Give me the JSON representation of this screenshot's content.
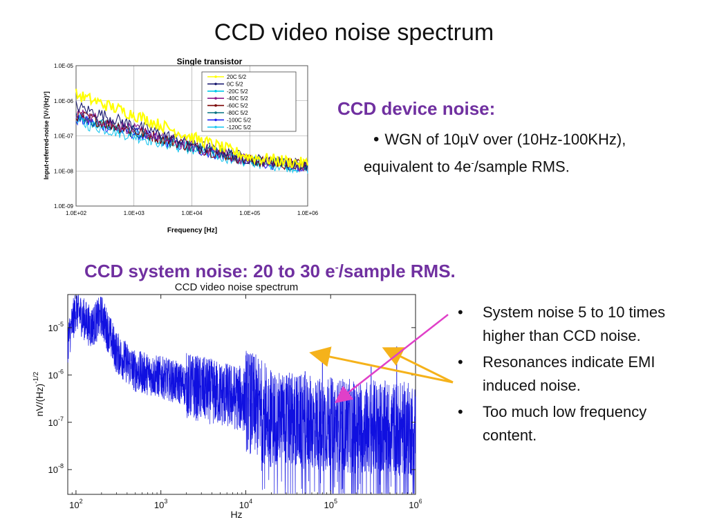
{
  "slide_title": "CCD video noise spectrum",
  "device_noise": {
    "heading": "CCD device noise:",
    "bullet_line1": "WGN of 10µV over (10Hz-100KHz),",
    "bullet_line2_pre": "equivalent to 4e",
    "bullet_line2_sup": "-",
    "bullet_line2_post": "/sample RMS."
  },
  "system_noise": {
    "heading_pre": "CCD system noise: 20 to 30 e",
    "heading_sup": "-",
    "heading_post": "/sample RMS."
  },
  "bullets": [
    "System noise 5 to 10 times higher than CCD noise.",
    "Resonances indicate EMI induced noise.",
    "Too much low frequency content."
  ],
  "colors": {
    "purple": "#7030A0",
    "arrow_orange": "#F5B21B",
    "arrow_magenta": "#E040C8",
    "spectrum_blue": "#1010E0"
  },
  "chart_data": [
    {
      "type": "line",
      "title": "Single transistor",
      "xlabel": "Frequency [Hz]",
      "ylabel": "Input-referred-noise [V/√(Hz)²]",
      "x_scale": "log",
      "y_scale": "log",
      "xlim": [
        100,
        1000000
      ],
      "ylim": [
        1e-09,
        1e-05
      ],
      "x_ticks": [
        "1.0E+02",
        "1.0E+03",
        "1.0E+04",
        "1.0E+05",
        "1.0E+06"
      ],
      "y_ticks": [
        "1.0E-05",
        "1.0E-06",
        "1.0E-07",
        "1.0E-08",
        "1.0E-09"
      ],
      "grid": true,
      "legend_position": "top-right",
      "series": [
        {
          "name": "20C 5/2",
          "color": "#FFFF00",
          "x": [
            100,
            1000,
            10000,
            100000,
            1000000
          ],
          "values": [
            1.5e-06,
            4e-07,
            9e-08,
            2.5e-08,
            1.6e-08
          ]
        },
        {
          "name": "0C 5/2",
          "color": "#1A1A70",
          "x": [
            100,
            1000,
            10000,
            100000,
            1000000
          ],
          "values": [
            7e-07,
            2e-07,
            6e-08,
            2.2e-08,
            1.5e-08
          ]
        },
        {
          "name": "-20C 5/2",
          "color": "#00C8E8",
          "x": [
            100,
            1000,
            10000,
            100000,
            1000000
          ],
          "values": [
            3e-07,
            1.2e-07,
            4.5e-08,
            1.9e-08,
            1.3e-08
          ]
        },
        {
          "name": "-40C 5/2",
          "color": "#8B1A8B",
          "x": [
            100,
            1000,
            10000,
            100000,
            1000000
          ],
          "values": [
            4.5e-07,
            1.5e-07,
            5e-08,
            2e-08,
            1.4e-08
          ]
        },
        {
          "name": "-60C 5/2",
          "color": "#7A0000",
          "x": [
            100,
            1000,
            10000,
            100000,
            1000000
          ],
          "values": [
            4e-07,
            1.4e-07,
            5e-08,
            2e-08,
            1.4e-08
          ]
        },
        {
          "name": "-80C 5/2",
          "color": "#007080",
          "x": [
            100,
            1000,
            10000,
            100000,
            1000000
          ],
          "values": [
            3.5e-07,
            1.3e-07,
            4.8e-08,
            2e-08,
            1.3e-08
          ]
        },
        {
          "name": "-100C 5/2",
          "color": "#2020F0",
          "x": [
            100,
            1000,
            10000,
            100000,
            1000000
          ],
          "values": [
            3e-07,
            1.2e-07,
            4.5e-08,
            1.9e-08,
            1.3e-08
          ]
        },
        {
          "name": "-120C 5/2",
          "color": "#20C8F0",
          "x": [
            100,
            1000,
            10000,
            100000,
            1000000
          ],
          "values": [
            2.5e-07,
            1e-07,
            4e-08,
            1.8e-08,
            1.2e-08
          ]
        }
      ]
    },
    {
      "type": "line",
      "title": "CCD video noise spectrum",
      "xlabel": "Hz",
      "ylabel": "nV/(Hz)",
      "ylabel_exponent": "-1/2",
      "x_scale": "log",
      "y_scale": "log",
      "xlim": [
        80,
        1000000
      ],
      "ylim": [
        3e-09,
        5e-05
      ],
      "x_tick_values": [
        100,
        1000,
        10000,
        100000,
        1000000
      ],
      "x_tick_labels": [
        [
          "10",
          "2"
        ],
        [
          "10",
          "3"
        ],
        [
          "10",
          "4"
        ],
        [
          "10",
          "5"
        ],
        [
          "10",
          "6"
        ]
      ],
      "y_tick_values": [
        1e-05,
        1e-06,
        1e-07,
        1e-08
      ],
      "y_tick_labels": [
        [
          "10",
          "-5"
        ],
        [
          "10",
          "-6"
        ],
        [
          "10",
          "-7"
        ],
        [
          "10",
          "-8"
        ]
      ],
      "grid": false,
      "series": [
        {
          "name": "",
          "color": "#1010E0",
          "x": [
            80,
            100,
            150,
            200,
            300,
            500,
            1000,
            2000,
            5000,
            10000,
            20000,
            50000,
            100000,
            200000,
            500000,
            1000000
          ],
          "values": [
            5e-06,
            2.5e-05,
            1e-05,
            1.8e-05,
            3e-06,
            1.2e-06,
            9e-07,
            6e-07,
            4e-07,
            3e-07,
            1.3e-07,
            1e-07,
            9e-08,
            8e-08,
            7.5e-08,
            7e-08
          ]
        }
      ],
      "peaks": [
        {
          "x": 80000,
          "value": 3.5e-06
        },
        {
          "x": 600000,
          "value": 4e-06
        },
        {
          "x": 50000,
          "value": 1.2e-06
        },
        {
          "x": 300000,
          "value": 1.5e-06
        }
      ]
    }
  ]
}
